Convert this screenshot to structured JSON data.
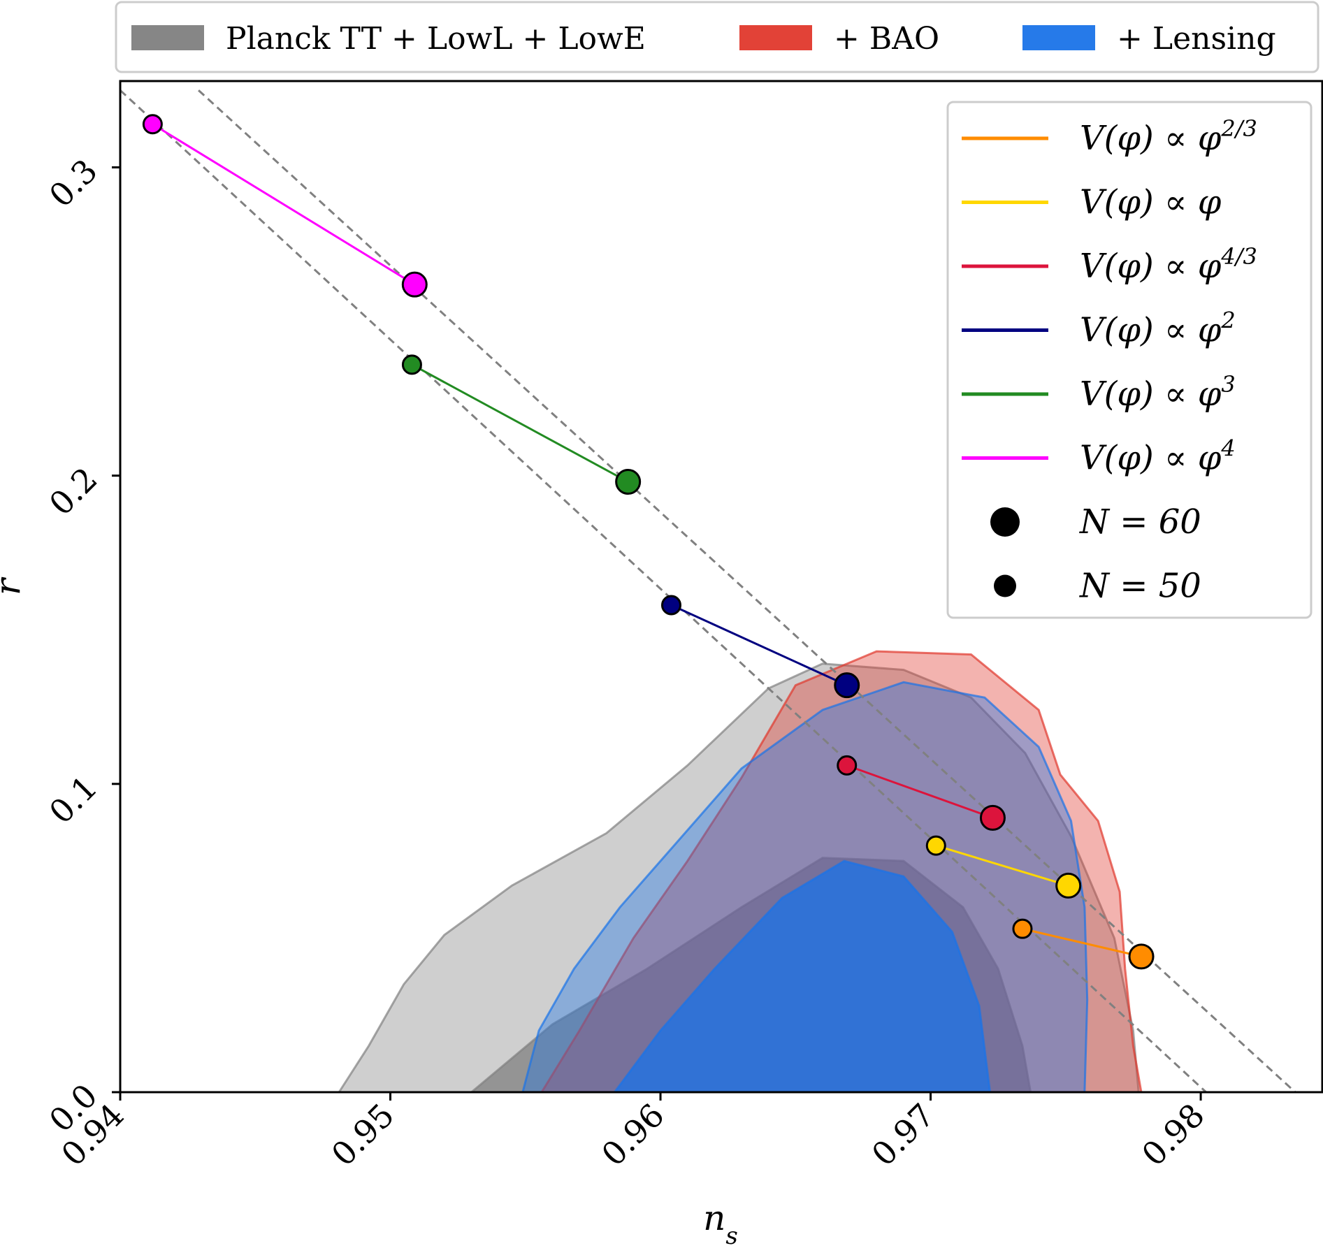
{
  "chart_data": {
    "type": "scatter",
    "xlabel": "n_s",
    "ylabel": "r",
    "xlim": [
      0.94,
      0.9845
    ],
    "ylim": [
      0.0,
      0.328
    ],
    "xticks": [
      "0.94",
      "0.95",
      "0.96",
      "0.97",
      "0.98"
    ],
    "yticks": [
      "0.0",
      "0.1",
      "0.2",
      "0.3"
    ],
    "xtick_values": [
      0.94,
      0.95,
      0.96,
      0.97,
      0.98
    ],
    "ytick_values": [
      0.0,
      0.1,
      0.2,
      0.3
    ],
    "grid": false,
    "top_legend": {
      "placement": "top",
      "entries": [
        {
          "label": "Planck TT + LowL + LowE",
          "color": "#808080"
        },
        {
          "label": "+ BAO",
          "color": "#e0382c"
        },
        {
          "label": "+ Lensing",
          "color": "#1a73e8"
        }
      ]
    },
    "contour_regions": [
      {
        "name": "Planck TT + LowL + LowE",
        "level": "95%",
        "color": "#808080",
        "points": [
          [
            0.9481,
            0.0
          ],
          [
            0.9492,
            0.015
          ],
          [
            0.9505,
            0.035
          ],
          [
            0.952,
            0.051
          ],
          [
            0.9545,
            0.067
          ],
          [
            0.958,
            0.084
          ],
          [
            0.961,
            0.106
          ],
          [
            0.964,
            0.131
          ],
          [
            0.966,
            0.139
          ],
          [
            0.969,
            0.137
          ],
          [
            0.9715,
            0.128
          ],
          [
            0.9735,
            0.11
          ],
          [
            0.9752,
            0.083
          ],
          [
            0.9768,
            0.05
          ],
          [
            0.9775,
            0.02
          ],
          [
            0.9777,
            0.0
          ]
        ]
      },
      {
        "name": "Planck TT + LowL + LowE",
        "level": "68%",
        "color": "#808080",
        "points": [
          [
            0.953,
            0.0
          ],
          [
            0.956,
            0.022
          ],
          [
            0.9595,
            0.04
          ],
          [
            0.963,
            0.06
          ],
          [
            0.966,
            0.076
          ],
          [
            0.969,
            0.075
          ],
          [
            0.9712,
            0.06
          ],
          [
            0.9725,
            0.04
          ],
          [
            0.9734,
            0.015
          ],
          [
            0.9737,
            0.0
          ]
        ]
      },
      {
        "name": "+ BAO",
        "level": "95%",
        "color": "#e0382c",
        "points": [
          [
            0.9556,
            0.0
          ],
          [
            0.957,
            0.02
          ],
          [
            0.959,
            0.05
          ],
          [
            0.961,
            0.075
          ],
          [
            0.963,
            0.102
          ],
          [
            0.965,
            0.132
          ],
          [
            0.968,
            0.143
          ],
          [
            0.9715,
            0.142
          ],
          [
            0.974,
            0.124
          ],
          [
            0.9748,
            0.103
          ],
          [
            0.9762,
            0.088
          ],
          [
            0.977,
            0.065
          ],
          [
            0.9772,
            0.04
          ],
          [
            0.9775,
            0.015
          ],
          [
            0.9778,
            0.0
          ]
        ]
      },
      {
        "name": "+ Lensing",
        "level": "95%",
        "color": "#1a73e8",
        "points": [
          [
            0.9549,
            0.0
          ],
          [
            0.9555,
            0.02
          ],
          [
            0.9568,
            0.04
          ],
          [
            0.9585,
            0.06
          ],
          [
            0.9605,
            0.08
          ],
          [
            0.963,
            0.105
          ],
          [
            0.966,
            0.124
          ],
          [
            0.969,
            0.133
          ],
          [
            0.972,
            0.128
          ],
          [
            0.974,
            0.112
          ],
          [
            0.9752,
            0.088
          ],
          [
            0.9757,
            0.06
          ],
          [
            0.9758,
            0.03
          ],
          [
            0.9757,
            0.0
          ]
        ]
      },
      {
        "name": "+ Lensing",
        "level": "68%",
        "color": "#1a73e8",
        "points": [
          [
            0.9583,
            0.0
          ],
          [
            0.96,
            0.02
          ],
          [
            0.962,
            0.04
          ],
          [
            0.9645,
            0.063
          ],
          [
            0.9668,
            0.075
          ],
          [
            0.969,
            0.07
          ],
          [
            0.9708,
            0.052
          ],
          [
            0.9718,
            0.028
          ],
          [
            0.9722,
            0.0
          ]
        ]
      }
    ],
    "guide_lines": [
      {
        "name": "N = 50 line",
        "points": [
          [
            0.94,
            0.325
          ],
          [
            0.9802,
            0.0
          ]
        ]
      },
      {
        "name": "N = 60 line",
        "points": [
          [
            0.9429,
            0.325
          ],
          [
            0.9835,
            0.0
          ]
        ]
      }
    ],
    "series": [
      {
        "name": "V(φ) ∝ φ^{2/3}",
        "label_base": "V(φ) ∝ φ",
        "label_exp": "2/3",
        "color": "#ff8c00",
        "n50": [
          0.9734,
          0.053
        ],
        "n60": [
          0.9778,
          0.044
        ]
      },
      {
        "name": "V(φ) ∝ φ",
        "label_base": "V(φ) ∝ φ",
        "label_exp": "",
        "color": "#ffd700",
        "n50": [
          0.9702,
          0.08
        ],
        "n60": [
          0.9751,
          0.067
        ]
      },
      {
        "name": "V(φ) ∝ φ^{4/3}",
        "label_base": "V(φ) ∝ φ",
        "label_exp": "4/3",
        "color": "#dc143c",
        "n50": [
          0.9669,
          0.106
        ],
        "n60": [
          0.9723,
          0.089
        ]
      },
      {
        "name": "V(φ) ∝ φ^2",
        "label_base": "V(φ) ∝ φ",
        "label_exp": "2",
        "color": "#000080",
        "n50": [
          0.9604,
          0.158
        ],
        "n60": [
          0.9669,
          0.132
        ]
      },
      {
        "name": "V(φ) ∝ φ^3",
        "label_base": "V(φ) ∝ φ",
        "label_exp": "3",
        "color": "#228b22",
        "n50": [
          0.9508,
          0.236
        ],
        "n60": [
          0.9588,
          0.198
        ]
      },
      {
        "name": "V(φ) ∝ φ^4",
        "label_base": "V(φ) ∝ φ",
        "label_exp": "4",
        "color": "#ff00ff",
        "n50": [
          0.9412,
          0.314
        ],
        "n60": [
          0.9509,
          0.262
        ]
      }
    ],
    "marker_legend": [
      {
        "label": "N = 60",
        "size": "large"
      },
      {
        "label": "N = 50",
        "size": "small"
      }
    ],
    "inner_legend_placement": "top-right"
  }
}
